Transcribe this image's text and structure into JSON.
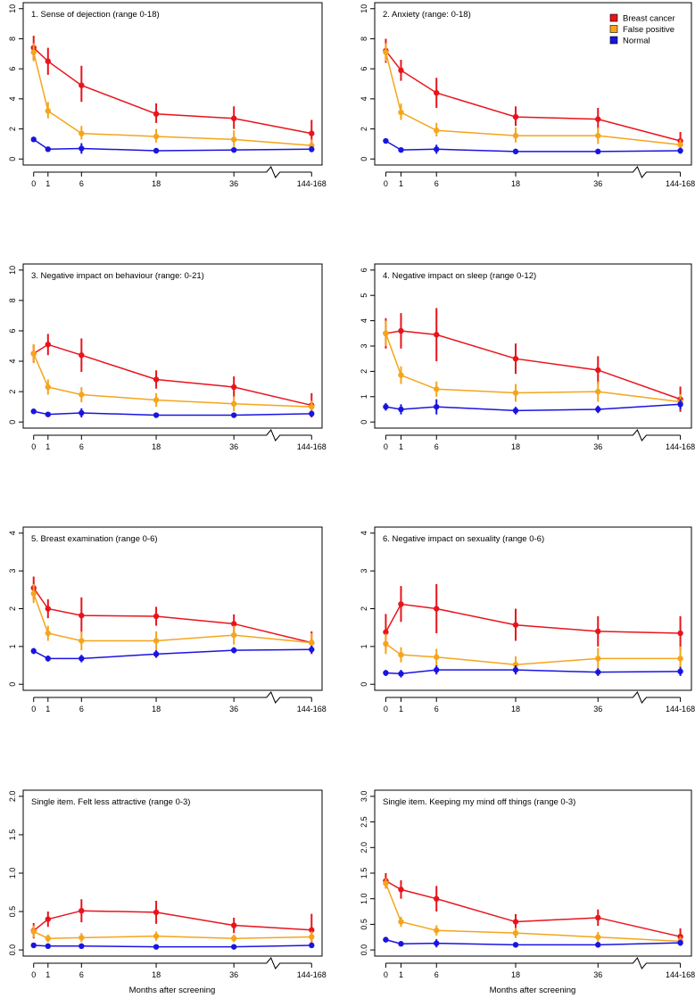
{
  "figure": {
    "xlabel": "Months after screening",
    "x_tick_labels": [
      "0",
      "1",
      "6",
      "18",
      "36",
      "144-168"
    ],
    "legend": [
      {
        "name": "Breast cancer",
        "color": "#e8141c"
      },
      {
        "name": "False positive",
        "color": "#f5a51c"
      },
      {
        "name": "Normal",
        "color": "#1a14e0"
      }
    ]
  },
  "chart_data": [
    {
      "type": "line",
      "title": "1. Sense of dejection (range 0-18)",
      "ylim": [
        0,
        10
      ],
      "yticks": [
        "0",
        "2",
        "4",
        "6",
        "8",
        "10"
      ],
      "series": [
        {
          "name": "Breast cancer",
          "values": [
            7.4,
            6.5,
            4.9,
            3.0,
            2.7,
            1.7
          ],
          "lower": [
            6.6,
            5.6,
            3.8,
            2.4,
            2.0,
            0.8
          ],
          "upper": [
            8.2,
            7.4,
            6.2,
            3.7,
            3.5,
            2.6
          ]
        },
        {
          "name": "False positive",
          "values": [
            7.1,
            3.2,
            1.7,
            1.5,
            1.3,
            0.9
          ],
          "lower": [
            6.5,
            2.7,
            1.3,
            1.1,
            0.8,
            0.5
          ],
          "upper": [
            7.7,
            3.8,
            2.2,
            2.0,
            1.9,
            1.3
          ]
        },
        {
          "name": "Normal",
          "values": [
            1.3,
            0.65,
            0.7,
            0.55,
            0.6,
            0.65
          ],
          "lower": [
            1.15,
            0.5,
            0.35,
            0.4,
            0.45,
            0.45
          ],
          "upper": [
            1.45,
            0.8,
            1.05,
            0.7,
            0.75,
            0.85
          ]
        }
      ]
    },
    {
      "type": "line",
      "title": "2. Anxiety (range: 0-18)",
      "ylim": [
        0,
        10
      ],
      "yticks": [
        "0",
        "2",
        "4",
        "6",
        "8",
        "10"
      ],
      "series": [
        {
          "name": "Breast cancer",
          "values": [
            7.2,
            5.9,
            4.4,
            2.8,
            2.65,
            1.2
          ],
          "lower": [
            6.4,
            5.2,
            3.4,
            2.2,
            2.0,
            0.6
          ],
          "upper": [
            8.0,
            6.6,
            5.4,
            3.5,
            3.4,
            1.8
          ]
        },
        {
          "name": "False positive",
          "values": [
            7.1,
            3.1,
            1.9,
            1.55,
            1.55,
            0.95
          ],
          "lower": [
            6.5,
            2.6,
            1.5,
            1.1,
            1.0,
            0.6
          ],
          "upper": [
            7.7,
            3.7,
            2.4,
            2.1,
            2.1,
            1.3
          ]
        },
        {
          "name": "Normal",
          "values": [
            1.2,
            0.6,
            0.65,
            0.5,
            0.5,
            0.55
          ],
          "lower": [
            1.05,
            0.5,
            0.35,
            0.35,
            0.35,
            0.35
          ],
          "upper": [
            1.35,
            0.7,
            0.95,
            0.65,
            0.65,
            0.75
          ]
        }
      ]
    },
    {
      "type": "line",
      "title": "3. Negative impact on behaviour (range: 0-21)",
      "ylim": [
        0,
        10
      ],
      "yticks": [
        "0",
        "2",
        "4",
        "6",
        "8",
        "10"
      ],
      "series": [
        {
          "name": "Breast cancer",
          "values": [
            4.5,
            5.1,
            4.4,
            2.8,
            2.3,
            1.1
          ],
          "lower": [
            3.9,
            4.4,
            3.3,
            2.2,
            1.6,
            0.3
          ],
          "upper": [
            5.1,
            5.8,
            5.5,
            3.4,
            3.0,
            1.9
          ]
        },
        {
          "name": "False positive",
          "values": [
            4.5,
            2.3,
            1.8,
            1.45,
            1.2,
            1.0
          ],
          "lower": [
            3.9,
            1.8,
            1.3,
            1.0,
            0.7,
            0.6
          ],
          "upper": [
            5.1,
            2.8,
            2.3,
            1.9,
            1.7,
            1.4
          ]
        },
        {
          "name": "Normal",
          "values": [
            0.7,
            0.5,
            0.6,
            0.45,
            0.45,
            0.55
          ],
          "lower": [
            0.6,
            0.4,
            0.3,
            0.3,
            0.3,
            0.35
          ],
          "upper": [
            0.8,
            0.6,
            0.9,
            0.6,
            0.6,
            0.75
          ]
        }
      ]
    },
    {
      "type": "line",
      "title": "4. Negative impact on sleep (range 0-12)",
      "ylim": [
        0,
        6
      ],
      "yticks": [
        "0",
        "1",
        "2",
        "3",
        "4",
        "5",
        "6"
      ],
      "series": [
        {
          "name": "Breast cancer",
          "values": [
            3.5,
            3.6,
            3.45,
            2.5,
            2.05,
            0.9
          ],
          "lower": [
            2.9,
            2.9,
            2.4,
            1.9,
            1.5,
            0.4
          ],
          "upper": [
            4.1,
            4.3,
            4.5,
            3.1,
            2.6,
            1.4
          ]
        },
        {
          "name": "False positive",
          "values": [
            3.5,
            1.85,
            1.3,
            1.15,
            1.2,
            0.8
          ],
          "lower": [
            3.0,
            1.5,
            1.0,
            0.8,
            0.8,
            0.5
          ],
          "upper": [
            4.0,
            2.2,
            1.6,
            1.5,
            1.6,
            1.1
          ]
        },
        {
          "name": "Normal",
          "values": [
            0.6,
            0.5,
            0.6,
            0.45,
            0.5,
            0.7
          ],
          "lower": [
            0.45,
            0.3,
            0.3,
            0.3,
            0.35,
            0.5
          ],
          "upper": [
            0.75,
            0.7,
            0.9,
            0.6,
            0.65,
            0.9
          ]
        }
      ]
    },
    {
      "type": "line",
      "title": "5. Breast examination (range 0-6)",
      "ylim": [
        0,
        4
      ],
      "yticks": [
        "0",
        "1",
        "2",
        "3",
        "4"
      ],
      "series": [
        {
          "name": "Breast cancer",
          "values": [
            2.55,
            2.0,
            1.82,
            1.8,
            1.6,
            1.1
          ],
          "lower": [
            2.25,
            1.75,
            1.35,
            1.55,
            1.35,
            0.8
          ],
          "upper": [
            2.85,
            2.25,
            2.3,
            2.05,
            1.85,
            1.4
          ]
        },
        {
          "name": "False positive",
          "values": [
            2.4,
            1.35,
            1.15,
            1.15,
            1.3,
            1.1
          ],
          "lower": [
            2.15,
            1.15,
            0.9,
            0.9,
            1.05,
            0.85
          ],
          "upper": [
            2.65,
            1.55,
            1.4,
            1.4,
            1.55,
            1.35
          ]
        },
        {
          "name": "Normal",
          "values": [
            0.88,
            0.68,
            0.68,
            0.8,
            0.9,
            0.92
          ],
          "lower": [
            0.8,
            0.6,
            0.58,
            0.7,
            0.82,
            0.82
          ],
          "upper": [
            0.96,
            0.76,
            0.78,
            0.9,
            0.98,
            1.02
          ]
        }
      ]
    },
    {
      "type": "line",
      "title": "6. Negative impact on sexuality (range 0-6)",
      "ylim": [
        0,
        4
      ],
      "yticks": [
        "0",
        "1",
        "2",
        "3",
        "4"
      ],
      "series": [
        {
          "name": "Breast cancer",
          "values": [
            1.38,
            2.12,
            2.0,
            1.57,
            1.4,
            1.35
          ],
          "lower": [
            0.9,
            1.65,
            1.35,
            1.15,
            1.0,
            0.9
          ],
          "upper": [
            1.86,
            2.6,
            2.65,
            2.0,
            1.8,
            1.8
          ]
        },
        {
          "name": "False positive",
          "values": [
            1.07,
            0.78,
            0.72,
            0.52,
            0.68,
            0.68
          ],
          "lower": [
            0.8,
            0.58,
            0.5,
            0.3,
            0.4,
            0.35
          ],
          "upper": [
            1.34,
            0.98,
            0.94,
            0.74,
            0.96,
            1.0
          ]
        },
        {
          "name": "Normal",
          "values": [
            0.3,
            0.28,
            0.38,
            0.38,
            0.32,
            0.34
          ],
          "lower": [
            0.22,
            0.18,
            0.26,
            0.26,
            0.22,
            0.22
          ],
          "upper": [
            0.38,
            0.38,
            0.5,
            0.5,
            0.42,
            0.46
          ]
        }
      ]
    },
    {
      "type": "line",
      "title": "Single item. Felt less attractive (range 0-3)",
      "ylim": [
        0,
        2
      ],
      "yticks": [
        "0.0",
        "0.5",
        "1.0",
        "1.5",
        "2.0"
      ],
      "series": [
        {
          "name": "Breast cancer",
          "values": [
            0.25,
            0.4,
            0.51,
            0.49,
            0.32,
            0.26
          ],
          "lower": [
            0.15,
            0.3,
            0.36,
            0.34,
            0.22,
            0.05
          ],
          "upper": [
            0.35,
            0.5,
            0.66,
            0.64,
            0.42,
            0.47
          ]
        },
        {
          "name": "False positive",
          "values": [
            0.24,
            0.15,
            0.16,
            0.18,
            0.15,
            0.17
          ],
          "lower": [
            0.16,
            0.1,
            0.1,
            0.12,
            0.1,
            0.1
          ],
          "upper": [
            0.32,
            0.2,
            0.22,
            0.24,
            0.2,
            0.24
          ]
        },
        {
          "name": "Normal",
          "values": [
            0.06,
            0.05,
            0.05,
            0.04,
            0.04,
            0.06
          ],
          "lower": [
            0.04,
            0.03,
            0.03,
            0.02,
            0.02,
            0.03
          ],
          "upper": [
            0.08,
            0.07,
            0.07,
            0.06,
            0.06,
            0.09
          ]
        }
      ]
    },
    {
      "type": "line",
      "title": "Single item. Keeping my mind off things (range 0-3)",
      "ylim": [
        0,
        3
      ],
      "yticks": [
        "0.0",
        "0.5",
        "1.0",
        "1.5",
        "2.0",
        "2.5",
        "3.0"
      ],
      "series": [
        {
          "name": "Breast cancer",
          "values": [
            1.35,
            1.18,
            1.0,
            0.55,
            0.63,
            0.26
          ],
          "lower": [
            1.2,
            1.0,
            0.75,
            0.4,
            0.47,
            0.1
          ],
          "upper": [
            1.5,
            1.36,
            1.25,
            0.7,
            0.79,
            0.42
          ]
        },
        {
          "name": "False positive",
          "values": [
            1.3,
            0.55,
            0.38,
            0.33,
            0.25,
            0.17
          ],
          "lower": [
            1.2,
            0.45,
            0.28,
            0.23,
            0.15,
            0.08
          ],
          "upper": [
            1.4,
            0.65,
            0.48,
            0.43,
            0.35,
            0.26
          ]
        },
        {
          "name": "Normal",
          "values": [
            0.2,
            0.12,
            0.13,
            0.1,
            0.1,
            0.14
          ],
          "lower": [
            0.17,
            0.09,
            0.05,
            0.06,
            0.06,
            0.08
          ],
          "upper": [
            0.23,
            0.15,
            0.21,
            0.14,
            0.14,
            0.2
          ]
        }
      ]
    }
  ]
}
